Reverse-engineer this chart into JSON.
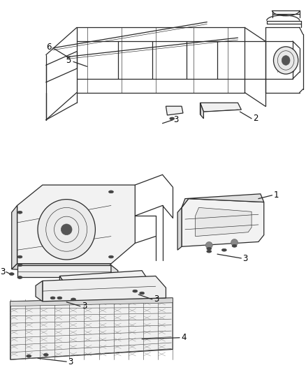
{
  "background_color": "#ffffff",
  "line_color": "#2a2a2a",
  "label_color": "#000000",
  "figsize": [
    4.38,
    5.33
  ],
  "dpi": 100,
  "lw_main": 0.9,
  "lw_thin": 0.45,
  "lw_thick": 1.1
}
